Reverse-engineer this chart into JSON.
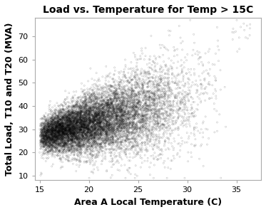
{
  "title": "Load vs. Temperature for Temp > 15C",
  "xlabel": "Area A Local Temperature (C)",
  "ylabel": "Total Load, T10 and T20 (MVA)",
  "xlim": [
    14.5,
    37.5
  ],
  "ylim": [
    8,
    78
  ],
  "xticks": [
    15,
    20,
    25,
    30,
    35
  ],
  "yticks": [
    10,
    20,
    30,
    40,
    50,
    60,
    70
  ],
  "n_points": 12000,
  "seed": 42,
  "x_min": 15.0,
  "x_max": 36.5,
  "slope": 1.05,
  "intercept": 27.0,
  "spread_base": 3.5,
  "spread_growth": 0.55,
  "background_color": "#ffffff",
  "title_fontsize": 10,
  "label_fontsize": 9,
  "tick_fontsize": 8,
  "marker_size": 2.5,
  "alpha": 0.35,
  "spine_color": "#aaaaaa"
}
